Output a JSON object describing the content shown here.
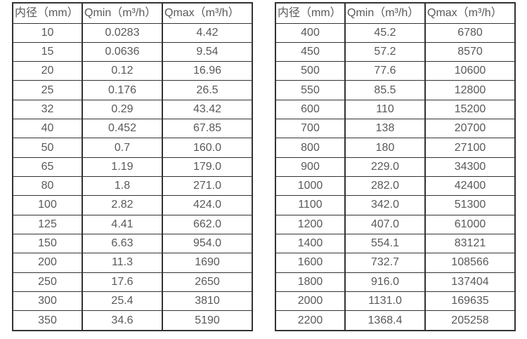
{
  "colors": {
    "border": "#333333",
    "text": "#595959",
    "background": "#ffffff"
  },
  "header": [
    "内径（mm）",
    "Qmin（m³/h）",
    "Qmax（m³/h）"
  ],
  "tables": [
    {
      "rows": [
        [
          "10",
          "0.0283",
          "4.42"
        ],
        [
          "15",
          "0.0636",
          "9.54"
        ],
        [
          "20",
          "0.12",
          "16.96"
        ],
        [
          "25",
          "0.176",
          "26.5"
        ],
        [
          "32",
          "0.29",
          "43.42"
        ],
        [
          "40",
          "0.452",
          "67.85"
        ],
        [
          "50",
          "0.7",
          "160.0"
        ],
        [
          "65",
          "1.19",
          "179.0"
        ],
        [
          "80",
          "1.8",
          "271.0"
        ],
        [
          "100",
          "2.82",
          "424.0"
        ],
        [
          "125",
          "4.41",
          "662.0"
        ],
        [
          "150",
          "6.63",
          "954.0"
        ],
        [
          "200",
          "11.3",
          "1690"
        ],
        [
          "250",
          "17.6",
          "2650"
        ],
        [
          "300",
          "25.4",
          "3810"
        ],
        [
          "350",
          "34.6",
          "5190"
        ]
      ]
    },
    {
      "rows": [
        [
          "400",
          "45.2",
          "6780"
        ],
        [
          "450",
          "57.2",
          "8570"
        ],
        [
          "500",
          "77.6",
          "10600"
        ],
        [
          "550",
          "85.5",
          "12800"
        ],
        [
          "600",
          "110",
          "15200"
        ],
        [
          "700",
          "138",
          "20700"
        ],
        [
          "800",
          "180",
          "27100"
        ],
        [
          "900",
          "229.0",
          "34300"
        ],
        [
          "1000",
          "282.0",
          "42400"
        ],
        [
          "1100",
          "342.0",
          "51300"
        ],
        [
          "1200",
          "407.0",
          "61000"
        ],
        [
          "1400",
          "554.1",
          "83121"
        ],
        [
          "1600",
          "732.7",
          "108566"
        ],
        [
          "1800",
          "916.0",
          "137404"
        ],
        [
          "2000",
          "1131.0",
          "169635"
        ],
        [
          "2200",
          "1368.4",
          "205258"
        ]
      ]
    }
  ]
}
